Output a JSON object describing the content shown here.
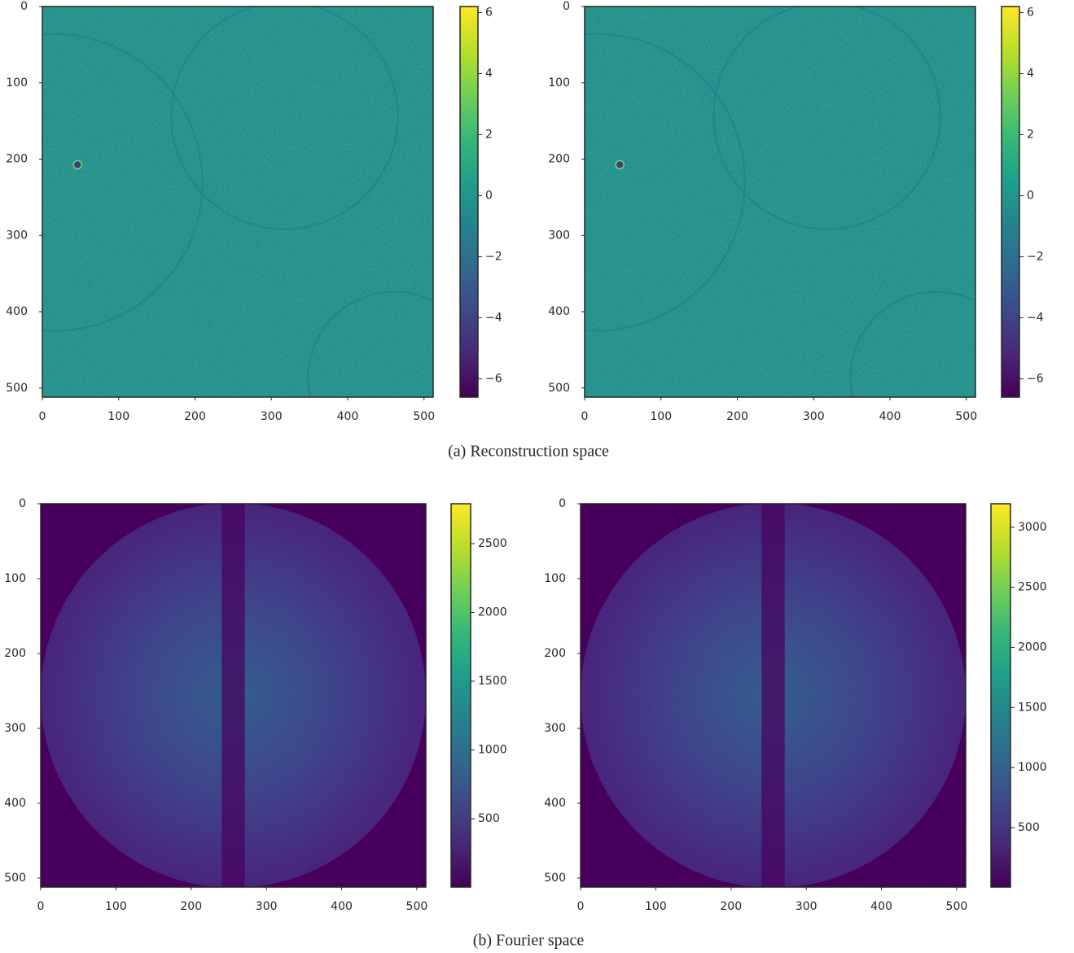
{
  "chart_data": [
    {
      "type": "image",
      "xlim": [
        0,
        512
      ],
      "ylim": [
        512,
        0
      ],
      "xticks": [
        0,
        100,
        200,
        300,
        400,
        500
      ],
      "yticks": [
        0,
        100,
        200,
        300,
        400,
        500
      ],
      "clim": [
        -6.6,
        6.2
      ],
      "cticks": [
        {
          "value": -6,
          "label": "−6"
        },
        {
          "value": -4,
          "label": "−4"
        },
        {
          "value": -2,
          "label": "−2"
        },
        0,
        2,
        4,
        6
      ]
    },
    {
      "type": "image",
      "xlim": [
        0,
        512
      ],
      "ylim": [
        512,
        0
      ],
      "xticks": [
        0,
        100,
        200,
        300,
        400,
        500
      ],
      "yticks": [
        0,
        100,
        200,
        300,
        400,
        500
      ],
      "clim": [
        -6.6,
        6.2
      ],
      "cticks": [
        {
          "value": -6,
          "label": "−6"
        },
        {
          "value": -4,
          "label": "−4"
        },
        {
          "value": -2,
          "label": "−2"
        },
        0,
        2,
        4,
        6
      ]
    },
    {
      "type": "fourier",
      "xlim": [
        0,
        512
      ],
      "ylim": [
        512,
        0
      ],
      "xticks": [
        0,
        100,
        200,
        300,
        400,
        500
      ],
      "yticks": [
        0,
        100,
        200,
        300,
        400,
        500
      ],
      "clim": [
        3,
        2790
      ],
      "cticks": [
        500,
        1000,
        1500,
        2000,
        2500
      ]
    },
    {
      "type": "fourier",
      "xlim": [
        0,
        512
      ],
      "ylim": [
        512,
        0
      ],
      "xticks": [
        0,
        100,
        200,
        300,
        400,
        500
      ],
      "yticks": [
        0,
        100,
        200,
        300,
        400,
        500
      ],
      "clim": [
        5,
        3196
      ],
      "cticks": [
        500,
        1000,
        1500,
        2000,
        2500,
        3000
      ]
    }
  ],
  "captions": [
    "(a) Reconstruction space",
    "(b) Fourier space"
  ]
}
